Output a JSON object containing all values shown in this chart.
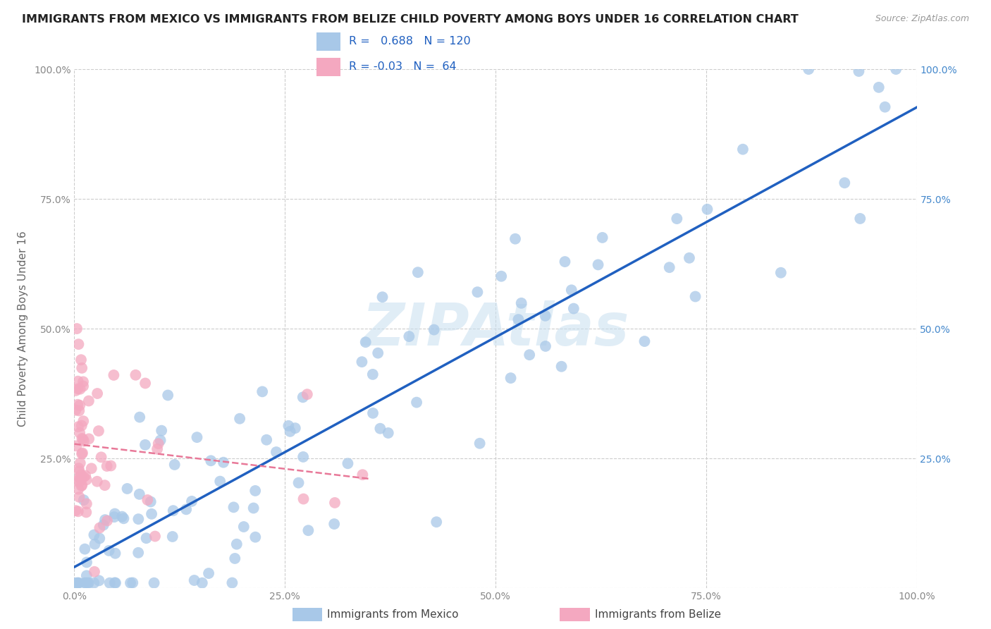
{
  "title": "IMMIGRANTS FROM MEXICO VS IMMIGRANTS FROM BELIZE CHILD POVERTY AMONG BOYS UNDER 16 CORRELATION CHART",
  "source": "Source: ZipAtlas.com",
  "ylabel": "Child Poverty Among Boys Under 16",
  "r_mexico": 0.688,
  "n_mexico": 120,
  "r_belize": -0.03,
  "n_belize": 64,
  "color_mexico": "#a8c8e8",
  "color_belize": "#f4a8c0",
  "line_color_mexico": "#2060c0",
  "line_color_belize": "#e87898",
  "watermark": "ZIPAtlas",
  "legend_r_color": "#2060c0",
  "legend_n_color": "#2060c0",
  "title_color": "#222222",
  "source_color": "#999999",
  "ylabel_color": "#666666",
  "tick_color": "#888888",
  "right_tick_color": "#4488cc",
  "grid_color": "#cccccc"
}
